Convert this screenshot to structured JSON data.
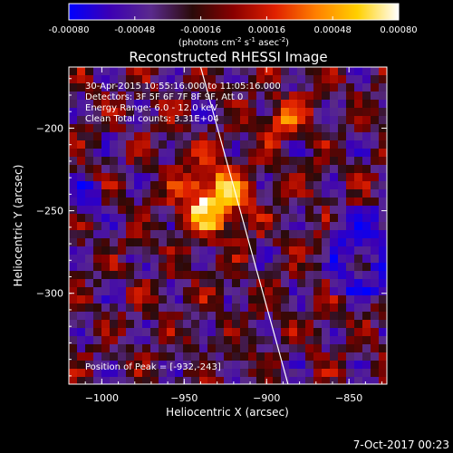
{
  "chart_data": {
    "type": "heatmap",
    "title": "Reconstructed RHESSI Image",
    "colorbar": {
      "tick_labels": [
        "-0.00080",
        "-0.00048",
        "-0.00016",
        "0.00016",
        "0.00048",
        "0.00080"
      ],
      "ticks": [
        -0.0008,
        -0.00048,
        -0.00016,
        0.00016,
        0.00048,
        0.0008
      ],
      "range": [
        -0.0008,
        0.0008
      ],
      "units_prefix": "(photons cm",
      "units_exp1": "-2",
      "units_mid1": " s",
      "units_exp2": "-1",
      "units_mid2": " asec",
      "units_exp3": "-2",
      "units_suffix": ")"
    },
    "xlabel": "Heliocentric X (arcsec)",
    "ylabel": "Heliocentric Y (arcsec)",
    "xlim": [
      -1020,
      -827
    ],
    "ylim": [
      -355,
      -163
    ],
    "xticks": [
      -1000,
      -950,
      -900,
      -850
    ],
    "yticks": [
      -200,
      -250,
      -300
    ],
    "xtick_labels": [
      "−1000",
      "−950",
      "−900",
      "−850"
    ],
    "ytick_labels": [
      "−200",
      "−250",
      "−300"
    ],
    "annotations": [
      "30-Apr-2015 10:55:16.000 to 11:05:16.000",
      "Detectors: 3F 5F 6F 7F 8F 9F, Att 0",
      "Energy Range: 6.0 - 12.0 keV",
      "Clean    Total counts: 3.31E+04"
    ],
    "peak_label": "Position of Peak = [-932,-243]",
    "peak": [
      -932,
      -243
    ],
    "limb_line": [
      [
        -940,
        -163
      ],
      [
        -887,
        -355
      ]
    ],
    "grid": false,
    "colors": {
      "background": "#000000",
      "limb": "#ffffff",
      "cmap": [
        "#0000ff",
        "#3c00b4",
        "#5a2a8c",
        "#2a0a08",
        "#8a0000",
        "#e02000",
        "#ff8000",
        "#ffd000",
        "#ffffff"
      ]
    }
  },
  "footer": {
    "timestamp": "7-Oct-2017 00:23"
  }
}
